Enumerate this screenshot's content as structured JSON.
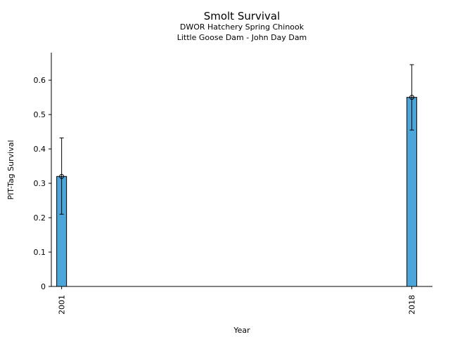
{
  "chart_data": {
    "type": "bar",
    "title": "Smolt Survival",
    "subtitle_lines": [
      "DWOR Hatchery Spring Chinook",
      "Little Goose Dam - John Day Dam"
    ],
    "xlabel": "Year",
    "ylabel": "PIT-Tag Survival",
    "x": [
      2001,
      2018
    ],
    "x_tick_labels": [
      "2001",
      "2018"
    ],
    "xlim": [
      2000.5,
      2019
    ],
    "values": [
      0.32,
      0.55
    ],
    "error_low": [
      0.21,
      0.455
    ],
    "error_high": [
      0.432,
      0.645
    ],
    "ylim": [
      0,
      0.68
    ],
    "y_ticks": [
      0,
      0.1,
      0.2,
      0.3,
      0.4,
      0.5,
      0.6
    ],
    "y_tick_labels": [
      "0",
      "0.1",
      "0.2",
      "0.3",
      "0.4",
      "0.5",
      "0.6"
    ],
    "bar_color": "#4da6d9",
    "grid": false,
    "legend": "none"
  }
}
